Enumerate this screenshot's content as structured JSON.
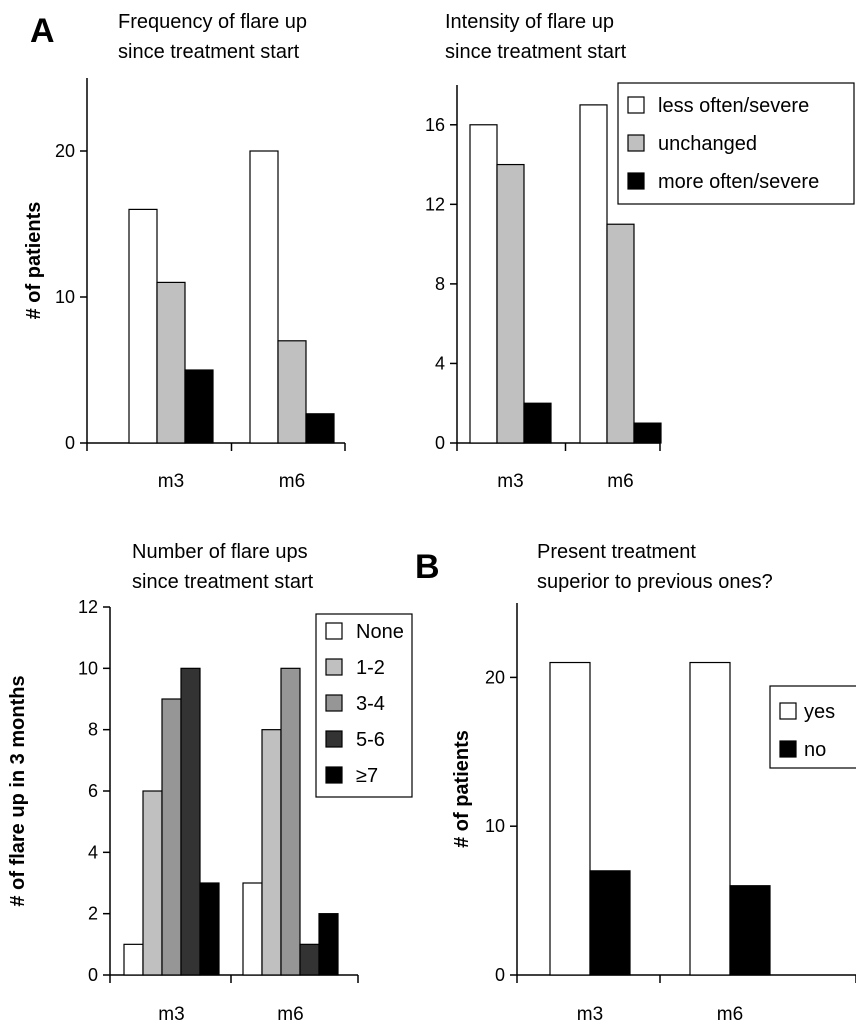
{
  "panel_labels": {
    "a": "A",
    "b": "B"
  },
  "colors": {
    "white": "#ffffff",
    "light_gray": "#c0c0c0",
    "mid_gray": "#969696",
    "dark_gray": "#333333",
    "black": "#000000"
  },
  "chart_data": [
    {
      "type": "bar",
      "title": [
        "Frequency of flare up",
        "since treatment start"
      ],
      "ylabel": "# of patients",
      "categories": [
        "m3",
        "m6"
      ],
      "ylim": [
        0,
        25
      ],
      "yticks": [
        0,
        10,
        20
      ],
      "series": [
        {
          "name": "less often/severe",
          "color": "#ffffff",
          "values": [
            16,
            20
          ]
        },
        {
          "name": "unchanged",
          "color": "#c0c0c0",
          "values": [
            11,
            7
          ]
        },
        {
          "name": "more often/severe",
          "color": "#000000",
          "values": [
            5,
            2
          ]
        }
      ],
      "legend": false
    },
    {
      "type": "bar",
      "title": [
        "Intensity of flare up",
        "since treatment start"
      ],
      "ylabel": "",
      "categories": [
        "m3",
        "m6"
      ],
      "ylim": [
        0,
        18
      ],
      "yticks": [
        0,
        4,
        8,
        12,
        16
      ],
      "series": [
        {
          "name": "less often/severe",
          "color": "#ffffff",
          "values": [
            16,
            17
          ]
        },
        {
          "name": "unchanged",
          "color": "#c0c0c0",
          "values": [
            14,
            11
          ]
        },
        {
          "name": "more often/severe",
          "color": "#000000",
          "values": [
            2,
            1
          ]
        }
      ],
      "legend": true,
      "legend_position": "top-right"
    },
    {
      "type": "bar",
      "title": [
        "Number of flare ups",
        "since treatment start"
      ],
      "ylabel": "# of flare up in 3 months",
      "categories": [
        "m3",
        "m6"
      ],
      "ylim": [
        0,
        12
      ],
      "yticks": [
        0,
        2,
        4,
        6,
        8,
        10,
        12
      ],
      "series": [
        {
          "name": "None",
          "color": "#ffffff",
          "values": [
            1,
            3
          ]
        },
        {
          "name": "1-2",
          "color": "#c0c0c0",
          "values": [
            6,
            8
          ]
        },
        {
          "name": "3-4",
          "color": "#969696",
          "values": [
            9,
            10
          ]
        },
        {
          "name": "5-6",
          "color": "#333333",
          "values": [
            10,
            1
          ]
        },
        {
          "name": "≥7",
          "color": "#000000",
          "values": [
            3,
            2
          ]
        }
      ],
      "legend": true,
      "legend_position": "top-right"
    },
    {
      "type": "bar",
      "title": [
        "Present treatment",
        "superior to previous ones?"
      ],
      "ylabel": "# of patients",
      "categories": [
        "m3",
        "m6"
      ],
      "ylim": [
        0,
        25
      ],
      "yticks": [
        0,
        10,
        20
      ],
      "series": [
        {
          "name": "yes",
          "color": "#ffffff",
          "values": [
            21,
            21
          ]
        },
        {
          "name": "no",
          "color": "#000000",
          "values": [
            7,
            6
          ]
        }
      ],
      "legend": true,
      "legend_position": "right"
    }
  ]
}
